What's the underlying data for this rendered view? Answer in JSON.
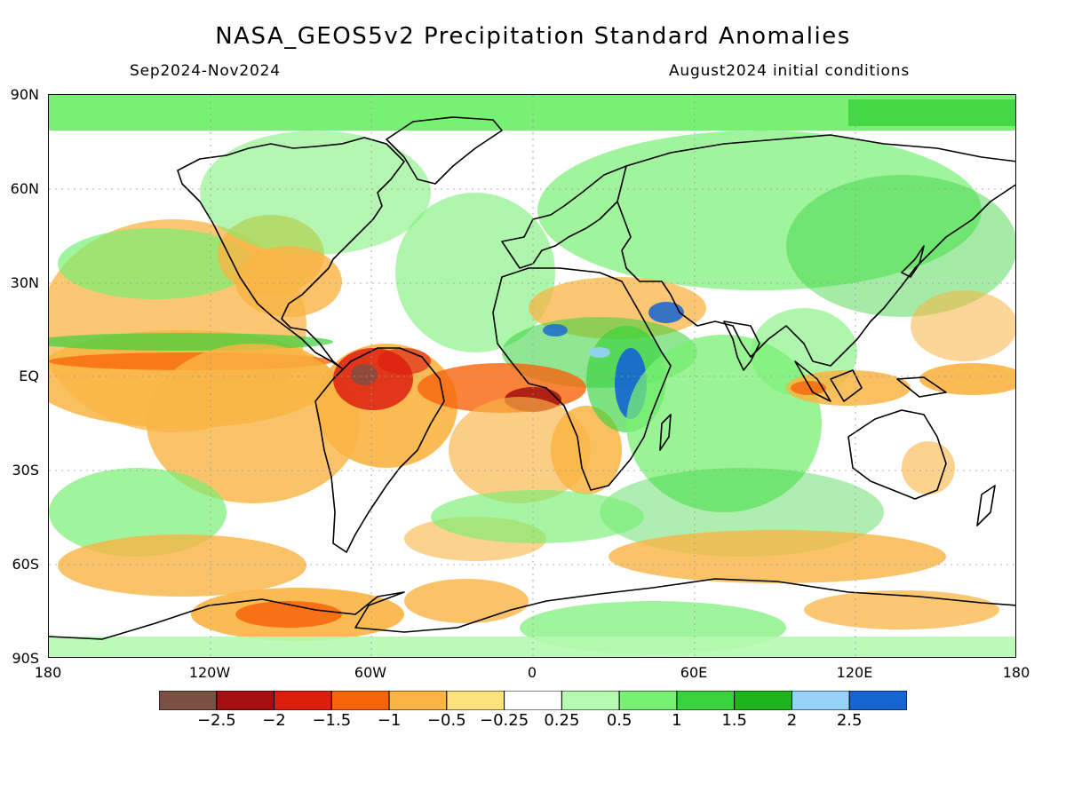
{
  "title": "NASA_GEOS5v2 Precipitation Standard Anomalies",
  "subtitle_left": "Sep2024-Nov2024",
  "subtitle_right": "August2024 initial conditions",
  "lat_ticks": [
    "90N",
    "60N",
    "30N",
    "EQ",
    "30S",
    "60S",
    "90S"
  ],
  "lon_ticks": [
    "180",
    "120W",
    "60W",
    "0",
    "60E",
    "120E",
    "180"
  ],
  "colorbar": {
    "colors": [
      "#7a5045",
      "#a50f0f",
      "#dc1e0f",
      "#f8640a",
      "#f9b443",
      "#fce27a",
      "#ffffff",
      "#b4fab0",
      "#78f073",
      "#37d23c",
      "#1eb41e",
      "#96d2fa",
      "#1464d2"
    ],
    "labels": [
      "-2.5",
      "-2",
      "-1.5",
      "-1",
      "-0.5",
      "-0.25",
      "0.25",
      "0.5",
      "1",
      "1.5",
      "2",
      "2.5"
    ]
  },
  "colors": {
    "strong_dry": "#a50f0f",
    "dry": "#f9b443",
    "neutral": "#ffffff",
    "wet": "#78f073",
    "very_wet": "#1464d2",
    "coastline": "#000000"
  }
}
